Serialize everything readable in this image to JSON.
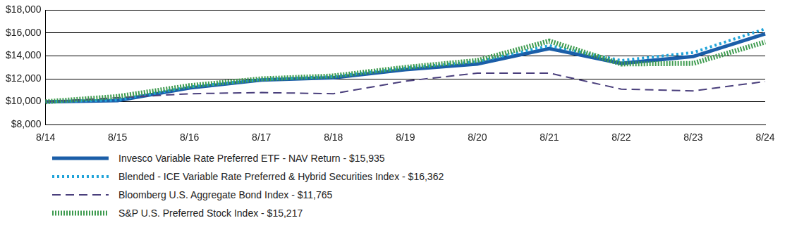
{
  "chart_data": {
    "type": "line",
    "categories": [
      "8/14",
      "8/15",
      "8/16",
      "8/17",
      "8/18",
      "8/19",
      "8/20",
      "8/21",
      "8/22",
      "8/23",
      "8/24"
    ],
    "series": [
      {
        "name": "Invesco Variable Rate Preferred ETF - NAV Return - $15,935",
        "color": "#1b5ea8",
        "line_style": "solid",
        "marker": "none",
        "values": [
          10000,
          10100,
          11200,
          11900,
          12100,
          12800,
          13300,
          14650,
          13350,
          13950,
          15935
        ]
      },
      {
        "name": "Blended - ICE Variable Rate Preferred & Hybrid Securities Index - $16,362",
        "color": "#1fa3d9",
        "line_style": "dotted",
        "marker": "none",
        "values": [
          10000,
          10150,
          11300,
          11950,
          12200,
          12950,
          13500,
          14900,
          13600,
          14300,
          16362
        ]
      },
      {
        "name": "Bloomberg U.S. Aggregate Bond Index - $11,765",
        "color": "#4a3f7c",
        "line_style": "dashed",
        "marker": "none",
        "values": [
          10000,
          10350,
          10700,
          10800,
          10700,
          11800,
          12500,
          12500,
          11100,
          10950,
          11765
        ]
      },
      {
        "name": "S&P U.S. Preferred Stock Index - $15,217",
        "color": "#3e9b4f",
        "line_style": "dotted",
        "marker": "none",
        "values": [
          10000,
          10450,
          11400,
          12000,
          12250,
          13000,
          13600,
          15300,
          13300,
          13350,
          15217
        ]
      }
    ],
    "ylim": [
      8000,
      18000
    ],
    "yticks": [
      {
        "value": 8000,
        "label": "$8,000"
      },
      {
        "value": 10000,
        "label": "$10,000"
      },
      {
        "value": 12000,
        "label": "$12,000"
      },
      {
        "value": 14000,
        "label": "$14,000"
      },
      {
        "value": 16000,
        "label": "$16,000"
      },
      {
        "value": 18000,
        "label": "$18,000"
      }
    ],
    "grid": true,
    "legend": "bottom"
  }
}
